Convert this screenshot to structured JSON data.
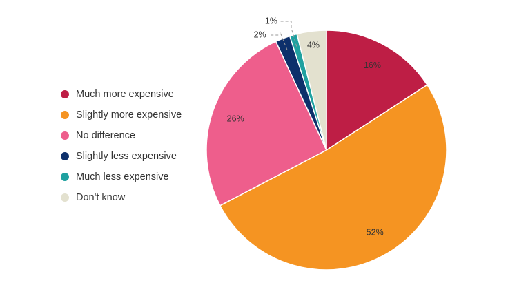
{
  "chart_data": {
    "type": "pie",
    "title": "",
    "legend_position": "left",
    "start_angle_deg": 0,
    "direction": "clockwise",
    "slices": [
      {
        "name": "Much more expensive",
        "value": 16,
        "label": "16%",
        "color": "#BE1E45"
      },
      {
        "name": "Slightly more expensive",
        "value": 52,
        "label": "52%",
        "color": "#F59422"
      },
      {
        "name": "No difference",
        "value": 26,
        "label": "26%",
        "color": "#EE5E8C"
      },
      {
        "name": "Slightly less expensive",
        "value": 2,
        "label": "2%",
        "color": "#0D306B"
      },
      {
        "name": "Much less expensive",
        "value": 1,
        "label": "1%",
        "color": "#1FA1A0"
      },
      {
        "name": "Don't know",
        "value": 4,
        "label": "4%",
        "color": "#E3E1CF"
      }
    ]
  }
}
